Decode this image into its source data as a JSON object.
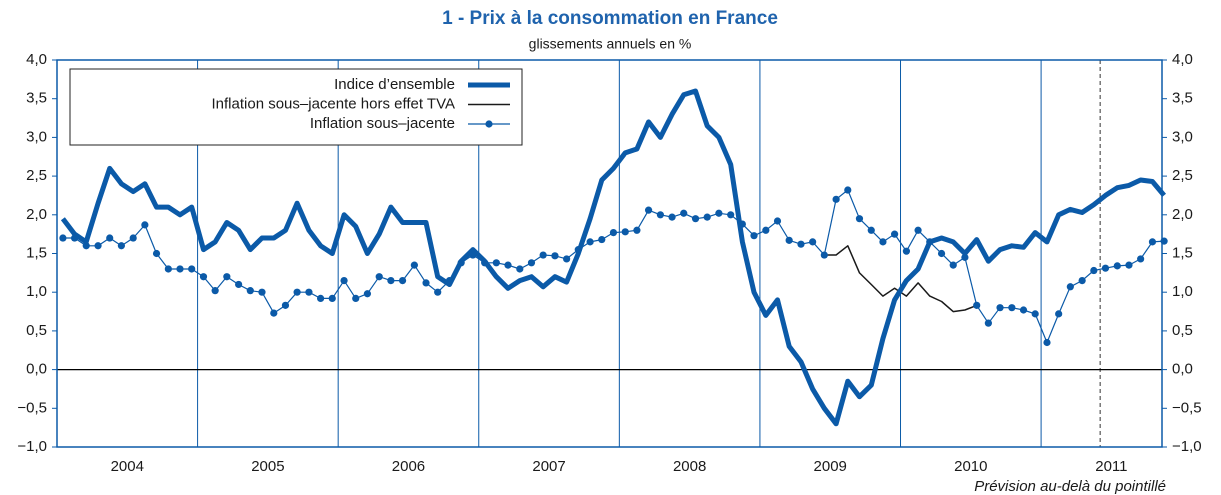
{
  "chart_data": {
    "type": "line",
    "title": "1 - Prix à la consommation en France",
    "subtitle": "glissements annuels en %",
    "note": "Prévision au-delà du pointillé",
    "legend": "upper left",
    "xlim": [
      2004,
      2011.86
    ],
    "xticks": [
      {
        "value": 2004.5,
        "label": "2004"
      },
      {
        "value": 2005.5,
        "label": "2005"
      },
      {
        "value": 2006.5,
        "label": "2006"
      },
      {
        "value": 2007.5,
        "label": "2007"
      },
      {
        "value": 2008.5,
        "label": "2008"
      },
      {
        "value": 2009.5,
        "label": "2009"
      },
      {
        "value": 2010.5,
        "label": "2010"
      },
      {
        "value": 2011.5,
        "label": "2011"
      }
    ],
    "xgrid": [
      2005,
      2006,
      2007,
      2008,
      2009,
      2010,
      2011
    ],
    "forecast_x": 2011.42,
    "ylim": [
      -1,
      4
    ],
    "yticks": [
      {
        "value": 4,
        "label": "4,0"
      },
      {
        "value": 3.5,
        "label": "3,5"
      },
      {
        "value": 3,
        "label": "3,0"
      },
      {
        "value": 2.5,
        "label": "2,5"
      },
      {
        "value": 2,
        "label": "2,0"
      },
      {
        "value": 1.5,
        "label": "1,5"
      },
      {
        "value": 1,
        "label": "1,0"
      },
      {
        "value": 0.5,
        "label": "0,5"
      },
      {
        "value": 0,
        "label": "0,0"
      },
      {
        "value": -0.5,
        "label": "−0,5"
      },
      {
        "value": -1,
        "label": "−1,0"
      }
    ],
    "x": [
      2004.042,
      2004.125,
      2004.208,
      2004.292,
      2004.375,
      2004.458,
      2004.542,
      2004.625,
      2004.708,
      2004.792,
      2004.875,
      2004.958,
      2005.042,
      2005.125,
      2005.208,
      2005.292,
      2005.375,
      2005.458,
      2005.542,
      2005.625,
      2005.708,
      2005.792,
      2005.875,
      2005.958,
      2006.042,
      2006.125,
      2006.208,
      2006.292,
      2006.375,
      2006.458,
      2006.542,
      2006.625,
      2006.708,
      2006.792,
      2006.875,
      2006.958,
      2007.042,
      2007.125,
      2007.208,
      2007.292,
      2007.375,
      2007.458,
      2007.542,
      2007.625,
      2007.708,
      2007.792,
      2007.875,
      2007.958,
      2008.042,
      2008.125,
      2008.208,
      2008.292,
      2008.375,
      2008.458,
      2008.542,
      2008.625,
      2008.708,
      2008.792,
      2008.875,
      2008.958,
      2009.042,
      2009.125,
      2009.208,
      2009.292,
      2009.375,
      2009.458,
      2009.542,
      2009.625,
      2009.708,
      2009.792,
      2009.875,
      2009.958,
      2010.042,
      2010.125,
      2010.208,
      2010.292,
      2010.375,
      2010.458,
      2010.542,
      2010.625,
      2010.708,
      2010.792,
      2010.875,
      2010.958,
      2011.042,
      2011.125,
      2011.208,
      2011.292,
      2011.375,
      2011.458,
      2011.542,
      2011.625,
      2011.708,
      2011.792,
      2011.875
    ],
    "series": [
      {
        "name": "Indice d’ensemble",
        "color": "#0b5aa8",
        "values": [
          1.95,
          1.75,
          1.65,
          2.15,
          2.6,
          2.4,
          2.3,
          2.4,
          2.1,
          2.1,
          2.0,
          2.1,
          1.55,
          1.65,
          1.9,
          1.8,
          1.55,
          1.7,
          1.7,
          1.8,
          2.15,
          1.8,
          1.6,
          1.5,
          2.0,
          1.85,
          1.5,
          1.75,
          2.1,
          1.9,
          1.9,
          1.9,
          1.2,
          1.1,
          1.4,
          1.55,
          1.4,
          1.2,
          1.05,
          1.15,
          1.2,
          1.07,
          1.2,
          1.13,
          1.5,
          1.95,
          2.45,
          2.6,
          2.8,
          2.85,
          3.2,
          3.0,
          3.3,
          3.55,
          3.6,
          3.15,
          3.0,
          2.65,
          1.65,
          1.0,
          0.7,
          0.9,
          0.3,
          0.1,
          -0.25,
          -0.5,
          -0.7,
          -0.15,
          -0.35,
          -0.2,
          0.4,
          0.9,
          1.15,
          1.3,
          1.65,
          1.7,
          1.65,
          1.5,
          1.68,
          1.4,
          1.55,
          1.6,
          1.58,
          1.77,
          1.65,
          2.0,
          2.07,
          2.03,
          2.13,
          2.25,
          2.35,
          2.38,
          2.45,
          2.43,
          2.25
        ]
      },
      {
        "name": "Inflation sous–jacente hors effet TVA",
        "color": "#1a1a1a",
        "values": [
          null,
          null,
          null,
          null,
          null,
          null,
          null,
          null,
          null,
          null,
          null,
          null,
          null,
          null,
          null,
          null,
          null,
          null,
          null,
          null,
          null,
          null,
          null,
          null,
          null,
          null,
          null,
          null,
          null,
          null,
          null,
          null,
          null,
          null,
          null,
          null,
          null,
          null,
          null,
          null,
          null,
          null,
          null,
          null,
          null,
          null,
          null,
          null,
          null,
          null,
          null,
          null,
          null,
          null,
          null,
          null,
          null,
          null,
          null,
          null,
          null,
          null,
          null,
          null,
          null,
          1.48,
          1.48,
          1.6,
          1.25,
          1.1,
          0.95,
          1.05,
          0.95,
          1.12,
          0.95,
          0.88,
          0.75,
          0.77,
          0.83,
          null,
          null,
          null,
          null,
          null,
          null,
          null,
          null,
          null,
          null,
          null,
          null,
          null,
          null,
          null,
          null
        ]
      },
      {
        "name": "Inflation sous–jacente",
        "color": "#0b5aa8",
        "marker": "circle",
        "values": [
          1.7,
          1.7,
          1.6,
          1.6,
          1.7,
          1.6,
          1.7,
          1.87,
          1.5,
          1.3,
          1.3,
          1.3,
          1.2,
          1.02,
          1.2,
          1.1,
          1.02,
          1.0,
          0.73,
          0.83,
          1.0,
          1.0,
          0.92,
          0.92,
          1.15,
          0.92,
          0.98,
          1.2,
          1.15,
          1.15,
          1.35,
          1.12,
          1.0,
          1.15,
          1.38,
          1.48,
          1.38,
          1.38,
          1.35,
          1.3,
          1.38,
          1.48,
          1.47,
          1.43,
          1.55,
          1.65,
          1.68,
          1.77,
          1.78,
          1.8,
          2.06,
          2.0,
          1.97,
          2.02,
          1.95,
          1.97,
          2.02,
          2.0,
          1.88,
          1.73,
          1.8,
          1.92,
          1.67,
          1.62,
          1.65,
          1.48,
          2.2,
          2.32,
          1.95,
          1.8,
          1.65,
          1.75,
          1.53,
          1.8,
          1.65,
          1.5,
          1.35,
          1.45,
          0.83,
          0.6,
          0.8,
          0.8,
          0.77,
          0.72,
          0.35,
          0.72,
          1.07,
          1.15,
          1.28,
          1.31,
          1.34,
          1.35,
          1.43,
          1.65,
          1.66
        ]
      }
    ]
  }
}
